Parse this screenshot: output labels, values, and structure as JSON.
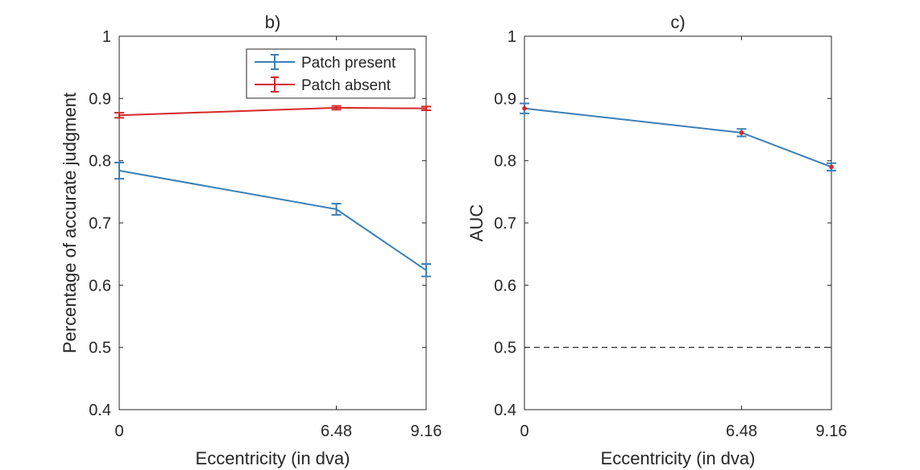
{
  "chart_data": [
    {
      "type": "line",
      "title": "b)",
      "xlabel": "Eccentricity (in dva)",
      "ylabel": "Percentage of accurate judgment",
      "xlim": [
        0,
        9.16
      ],
      "ylim": [
        0.4,
        1
      ],
      "x_ticks": [
        0,
        6.48,
        9.16
      ],
      "x_tick_labels": [
        "0",
        "6.48",
        "9.16"
      ],
      "y_ticks": [
        0.4,
        0.5,
        0.6,
        0.7,
        0.8,
        0.9,
        1
      ],
      "y_tick_labels": [
        "0.4",
        "0.5",
        "0.6",
        "0.7",
        "0.8",
        "0.9",
        "1"
      ],
      "legend_position": "top-right",
      "series": [
        {
          "name": "Patch present",
          "color": "#3a7fb8",
          "x": [
            0,
            6.48,
            9.16
          ],
          "y": [
            0.784,
            0.722,
            0.624
          ],
          "err": [
            0.013,
            0.009,
            0.01
          ]
        },
        {
          "name": "Patch absent",
          "color": "#d62728",
          "x": [
            0,
            6.48,
            9.16
          ],
          "y": [
            0.873,
            0.885,
            0.884
          ],
          "err": [
            0.004,
            0.003,
            0.003
          ]
        }
      ]
    },
    {
      "type": "line",
      "title": "c)",
      "xlabel": "Eccentricity (in dva)",
      "ylabel": "AUC",
      "xlim": [
        0,
        9.16
      ],
      "ylim": [
        0.4,
        1
      ],
      "x_ticks": [
        0,
        6.48,
        9.16
      ],
      "x_tick_labels": [
        "0",
        "6.48",
        "9.16"
      ],
      "y_ticks": [
        0.4,
        0.5,
        0.6,
        0.7,
        0.8,
        0.9,
        1
      ],
      "y_tick_labels": [
        "0.4",
        "0.5",
        "0.6",
        "0.7",
        "0.8",
        "0.9",
        "1"
      ],
      "reference_line": {
        "y": 0.5,
        "style": "dashed",
        "color": "#000000"
      },
      "series": [
        {
          "color": "#3a7fb8",
          "marker_color": "#d62728",
          "x": [
            0,
            6.48,
            9.16
          ],
          "y": [
            0.884,
            0.845,
            0.79
          ],
          "err": [
            0.008,
            0.006,
            0.006
          ]
        }
      ]
    }
  ]
}
